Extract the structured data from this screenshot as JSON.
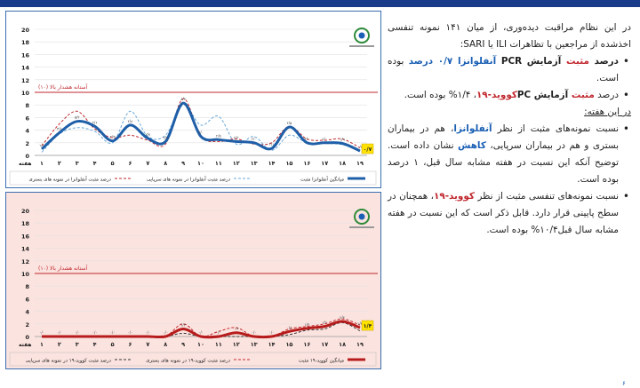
{
  "text": {
    "intro": "در این نظام مراقبت دیده‌وری، از میان ۱۴۱ نمونه تنفسی اخذشده از مراجعین با تظاهرات ILI یا SARI:",
    "b1_a": "درصد ",
    "b1_b": "مثبت",
    "b1_c": " آزمایش PCR ",
    "b1_d": "آنفلوانزا ۰/۷ درصد",
    "b1_e": " بوده است.",
    "b2_a": "درصد ",
    "b2_b": "مثبت",
    "b2_c": " آزمایش PC",
    "b2_d": "کووید-۱۹",
    "b2_e": "، ۱/۴% بوده است.",
    "section": "در این هفته:",
    "b3_a": "نسبت نمونه‌های مثبت از نظر ",
    "b3_b": "آنفلوانزا",
    "b3_c": "، هم در بیماران بستری و هم در بیماران سرپایی، ",
    "b3_d": "کاهش",
    "b3_e": " نشان داده است. توضیح آنکه این نسبت در هفته مشابه سال قبل، ۱ درصد بوده است.",
    "b4_a": "نسبت نمونه‌های تنفسی مثبت از نظر ",
    "b4_b": "کووید-۱۹",
    "b4_c": "، همچنان در سطح پایینی قرار دارد. قابل ذکر است که این نسبت در هفته مشابه سال قبل۱۰/۴% بوده است.",
    "page_number": "۶"
  },
  "chart_data": [
    {
      "type": "line",
      "x": [
        1,
        2,
        3,
        4,
        5,
        6,
        7,
        8,
        9,
        10,
        11,
        12,
        13,
        14,
        15,
        16,
        17,
        18,
        19
      ],
      "xlabel": "هفته",
      "ylim": [
        0,
        20
      ],
      "yticks": [
        0,
        2,
        4,
        6,
        8,
        10,
        12,
        14,
        16,
        18,
        20
      ],
      "threshold": {
        "value": 10,
        "label": "آستانه هشدار بالا (۱۰)"
      },
      "series": [
        {
          "name": "میانگین آنفلوانزا مثبت",
          "color": "#1f5fa8",
          "style": "solid-thick",
          "values": [
            1.0,
            3.6,
            5.4,
            4.6,
            2.3,
            4.8,
            2.7,
            2.2,
            8.3,
            3.0,
            2.5,
            2.2,
            2.0,
            1.1,
            4.5,
            2.0,
            2.0,
            1.9,
            0.7
          ]
        },
        {
          "name": "درصد مثبت آنفلوانزا در نمونه های سرپایی",
          "color": "#6aa8d8",
          "style": "dashed",
          "values": [
            0.5,
            3.4,
            4.4,
            3.8,
            2.0,
            7.0,
            3.0,
            3.2,
            8.0,
            4.8,
            6.2,
            1.8,
            3.0,
            0.8,
            3.2,
            2.0,
            1.9,
            1.7,
            0.8
          ]
        },
        {
          "name": "درصد مثبت آنفلوانزا در نمونه های بستری",
          "color": "#c0272d",
          "style": "dashed",
          "values": [
            1.5,
            5.0,
            7.0,
            4.2,
            2.8,
            3.2,
            2.4,
            1.8,
            9.0,
            3.0,
            2.2,
            2.6,
            1.8,
            2.0,
            4.6,
            2.6,
            2.4,
            2.6,
            1.2
          ]
        }
      ],
      "labels": [
        "۰/۷"
      ]
    },
    {
      "type": "line",
      "x": [
        1,
        2,
        3,
        4,
        5,
        6,
        7,
        8,
        9,
        10,
        11,
        12,
        13,
        14,
        15,
        16,
        17,
        18,
        19
      ],
      "xlabel": "هفته",
      "ylim": [
        0,
        20
      ],
      "yticks": [
        0,
        2,
        4,
        6,
        8,
        10,
        12,
        14,
        16,
        18,
        20
      ],
      "threshold": {
        "value": 10,
        "label": "آستانه هشدار بالا (۱۰)"
      },
      "series": [
        {
          "name": "میانگین کووید-۱۹ مثبت",
          "color": "#b71c1c",
          "style": "solid-thick",
          "values": [
            0,
            0,
            0,
            0,
            0,
            0,
            0,
            0,
            1.2,
            0,
            0,
            0.6,
            0,
            0,
            0.8,
            1.3,
            1.6,
            2.4,
            1.4
          ]
        },
        {
          "name": "درصد مثبت کووید-۱۹ در نمونه های بستری",
          "color": "#c0272d",
          "style": "dashed",
          "values": [
            0,
            0,
            0,
            0,
            0,
            0,
            0,
            0,
            2.0,
            0,
            0.8,
            1.4,
            0,
            0,
            1.2,
            1.6,
            2.0,
            2.8,
            1.8
          ]
        },
        {
          "name": "درصد مثبت کووید-۱۹ در نمونه های سرپایی",
          "color": "#333333",
          "style": "dashed",
          "values": [
            0,
            0,
            0,
            0,
            0,
            0,
            0,
            0,
            0.5,
            0,
            0,
            0,
            0,
            0,
            0.3,
            1.0,
            1.2,
            2.2,
            0.9
          ]
        }
      ],
      "labels": [
        "۱/۴"
      ]
    }
  ],
  "colors": {
    "threshold": "#c0272d",
    "frame": "#3a6fb0",
    "chart2_bg": "#fbe3df",
    "accent_blue": "#1a5fb4",
    "accent_red": "#c0272d"
  }
}
